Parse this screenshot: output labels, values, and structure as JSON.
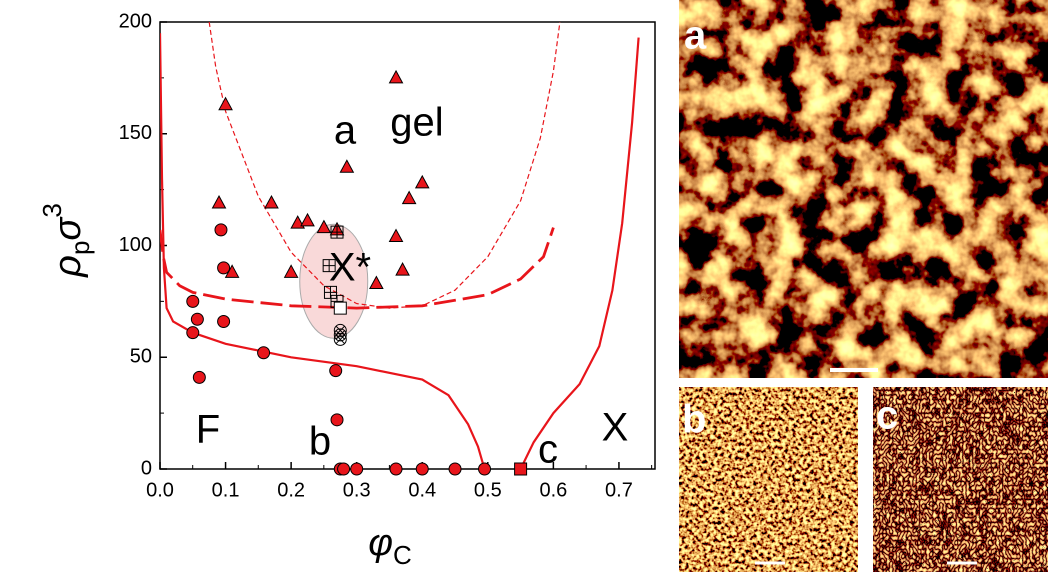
{
  "chart_data": {
    "type": "scatter",
    "xlabel_parts": [
      "φ",
      "C"
    ],
    "ylabel_parts": [
      "ρ",
      "p",
      "σ",
      "3"
    ],
    "xlim": [
      0,
      0.755
    ],
    "ylim": [
      0,
      200
    ],
    "xticks": [
      {
        "value": 0,
        "label": "0.0"
      },
      0.1,
      0.2,
      0.3,
      0.4,
      0.5,
      0.6,
      0.7
    ],
    "yticks": [
      0,
      50,
      100,
      150,
      200
    ],
    "annotations": [
      "a",
      "gel",
      "X*",
      "F",
      "b",
      "c",
      "X"
    ],
    "panels": [
      "a",
      "b",
      "c"
    ],
    "lines": [
      {
        "style": "solid",
        "color": "#e8151b",
        "x": [
          0.0,
          0.003,
          0.006,
          0.01,
          0.02,
          0.05,
          0.1,
          0.2,
          0.3,
          0.4,
          0.44,
          0.47,
          0.485,
          0.495
        ],
        "y": [
          195,
          130,
          90,
          72,
          66,
          61,
          56,
          50,
          46,
          40,
          33,
          20,
          10,
          0
        ]
      },
      {
        "style": "solid",
        "color": "#e8151b",
        "x": [
          0.55,
          0.57,
          0.6,
          0.64,
          0.67,
          0.69,
          0.705,
          0.72,
          0.73
        ],
        "y": [
          0,
          12,
          25,
          38,
          55,
          80,
          110,
          155,
          193
        ]
      },
      {
        "style": "dashed",
        "color": "#e8151b",
        "x": [
          0.0,
          0.005,
          0.01,
          0.03,
          0.05,
          0.1,
          0.2,
          0.3,
          0.4,
          0.5,
          0.55,
          0.585,
          0.6
        ],
        "y": [
          107,
          95,
          88,
          82,
          79,
          76,
          73,
          72,
          73,
          78,
          85,
          95,
          108
        ]
      },
      {
        "style": "dotted",
        "color": "#e8151b",
        "x": [
          0.075,
          0.085,
          0.1,
          0.15,
          0.2,
          0.25,
          0.3,
          0.35,
          0.4,
          0.45,
          0.5,
          0.55,
          0.58,
          0.6,
          0.61
        ],
        "y": [
          200,
          180,
          160,
          122,
          97,
          82,
          74,
          72,
          73,
          80,
          95,
          120,
          148,
          178,
          200
        ]
      }
    ],
    "series": [
      {
        "marker": "triangle",
        "color": "#e8151b",
        "x": [
          0.1,
          0.09,
          0.11,
          0.17,
          0.2,
          0.21,
          0.225,
          0.25,
          0.27,
          0.285,
          0.33,
          0.36,
          0.36,
          0.37,
          0.38,
          0.4
        ],
        "y": [
          163,
          119,
          88,
          119,
          88,
          110,
          111,
          108,
          107,
          135,
          83,
          175,
          104,
          89,
          121,
          128
        ]
      },
      {
        "marker": "circle",
        "color": "#e8151b",
        "x": [
          0.05,
          0.05,
          0.057,
          0.06,
          0.093,
          0.097,
          0.097,
          0.158,
          0.268,
          0.27,
          0.275,
          0.28,
          0.3,
          0.36,
          0.4,
          0.45,
          0.495
        ],
        "y": [
          75,
          61,
          67,
          41,
          107,
          90,
          66,
          52,
          44,
          22,
          0,
          0,
          0,
          0,
          0,
          0,
          0
        ]
      },
      {
        "marker": "square",
        "color": "#e8151b",
        "x": [
          0.55
        ],
        "y": [
          0
        ]
      },
      {
        "marker": "square-plus",
        "color": "#000000",
        "x": [
          0.27,
          0.258,
          0.26,
          0.27
        ],
        "y": [
          106,
          91,
          79,
          75
        ]
      },
      {
        "marker": "square",
        "color": "#ffffff",
        "x": [
          0.275
        ],
        "y": [
          72
        ]
      },
      {
        "marker": "circle-cross",
        "color": "#000000",
        "x": [
          0.275,
          0.275,
          0.275
        ],
        "y": [
          62,
          60,
          58
        ]
      }
    ]
  }
}
